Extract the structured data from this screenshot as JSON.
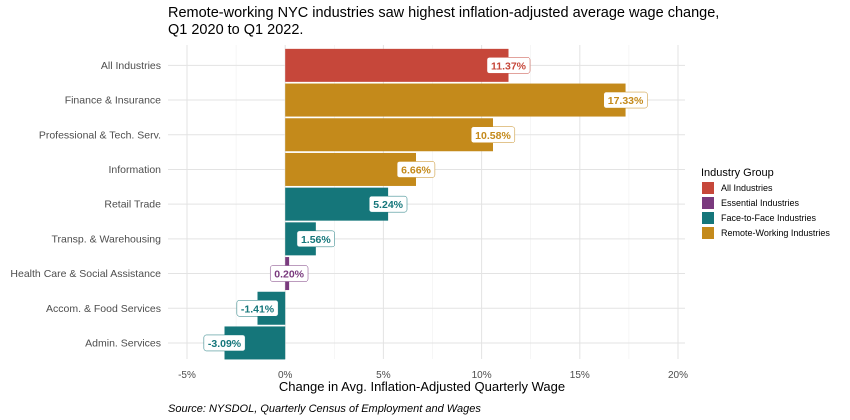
{
  "chart_data": {
    "type": "bar",
    "orientation": "horizontal",
    "title": "Remote-working NYC industries saw highest inflation-adjusted average wage change, Q1 2020 to Q1 2022.",
    "xlabel": "Change in Avg. Inflation-Adjusted Quarterly Wage",
    "ylabel": "",
    "caption": "Source: NYSDOL, Quarterly Census of Employment and Wages",
    "xlim": [
      -5,
      20
    ],
    "xticks": [
      -5,
      0,
      5,
      10,
      15,
      20
    ],
    "xtick_labels": [
      "-5%",
      "0%",
      "5%",
      "10%",
      "15%",
      "20%"
    ],
    "grid": true,
    "legend": {
      "title": "Industry Group",
      "position": "right",
      "entries": [
        {
          "name": "All Industries",
          "color": "#c6473a"
        },
        {
          "name": "Essential Industries",
          "color": "#7a3a7e"
        },
        {
          "name": "Face-to-Face Industries",
          "color": "#15767a"
        },
        {
          "name": "Remote-Working Industries",
          "color": "#c48a1b"
        }
      ]
    },
    "bars": [
      {
        "category": "All Industries",
        "value": 11.37,
        "label": "11.37%",
        "group": "All Industries"
      },
      {
        "category": "Finance & Insurance",
        "value": 17.33,
        "label": "17.33%",
        "group": "Remote-Working Industries"
      },
      {
        "category": "Professional & Tech. Serv.",
        "value": 10.58,
        "label": "10.58%",
        "group": "Remote-Working Industries"
      },
      {
        "category": "Information",
        "value": 6.66,
        "label": "6.66%",
        "group": "Remote-Working Industries"
      },
      {
        "category": "Retail Trade",
        "value": 5.24,
        "label": "5.24%",
        "group": "Face-to-Face Industries"
      },
      {
        "category": "Transp. & Warehousing",
        "value": 1.56,
        "label": "1.56%",
        "group": "Face-to-Face Industries"
      },
      {
        "category": "Health Care & Social Assistance",
        "value": 0.2,
        "label": "0.20%",
        "group": "Essential Industries"
      },
      {
        "category": "Accom. & Food Services",
        "value": -1.41,
        "label": "-1.41%",
        "group": "Face-to-Face Industries"
      },
      {
        "category": "Admin. Services",
        "value": -3.09,
        "label": "-3.09%",
        "group": "Face-to-Face Industries"
      }
    ]
  }
}
